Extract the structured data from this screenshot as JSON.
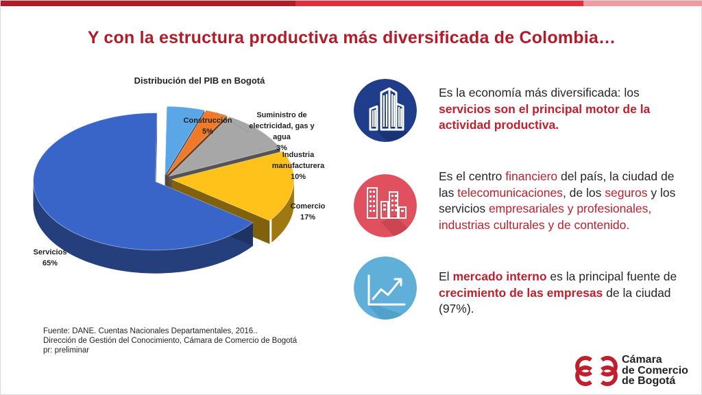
{
  "slide": {
    "title": "Y con la estructura productiva más diversificada de Colombia…",
    "accent_colors": [
      "#b31b28",
      "#e52d3c",
      "#f29aa2"
    ]
  },
  "chart_data": {
    "type": "pie",
    "title": "Distribución del PIB en Bogotá",
    "slices": [
      {
        "name": "Servicios",
        "label": "Servicios",
        "pct_label": "65%",
        "value": 65,
        "color": "#3a65c8"
      },
      {
        "name": "Construcción",
        "label": "Construcción",
        "pct_label": "5%",
        "value": 5,
        "color": "#5aa6e6"
      },
      {
        "name": "Suministro de electricidad, gas y agua",
        "label": [
          "Suministro de",
          "electricidad, gas y",
          "agua"
        ],
        "pct_label": "3%",
        "value": 3,
        "color": "#ef7a2a"
      },
      {
        "name": "Industria manufacturera",
        "label": [
          "Industria",
          "manufacturera"
        ],
        "pct_label": "10%",
        "value": 10,
        "color": "#a7a7a7"
      },
      {
        "name": "Comercio",
        "label": "Comercio",
        "pct_label": "17%",
        "value": 17,
        "color": "#ffc21a"
      }
    ],
    "legend": "none"
  },
  "source": {
    "line1": "Fuente: DANE. Cuentas Nacionales Departamentales, 2016..",
    "line2": "Dirección de Gestión del Conocimiento, Cámara de Comercio de Bogotá",
    "line3": "pr: preliminar"
  },
  "items": [
    {
      "icon": "buildings-icon",
      "color": "#1f3d8a",
      "segments": [
        {
          "t": "Es la economía más diversificada: los ",
          "s": "n"
        },
        {
          "t": "servicios son el principal motor de la actividad productiva.",
          "s": "hlb"
        }
      ]
    },
    {
      "icon": "city-skyline-icon",
      "color": "#e0505e",
      "segments": [
        {
          "t": "Es el centro ",
          "s": "n"
        },
        {
          "t": "financiero",
          "s": "hl"
        },
        {
          "t": " del país, la ciudad de las ",
          "s": "n"
        },
        {
          "t": "telecomunicaciones",
          "s": "hl"
        },
        {
          "t": ", de los ",
          "s": "n"
        },
        {
          "t": "seguros",
          "s": "hl"
        },
        {
          "t": " y los servicios ",
          "s": "n"
        },
        {
          "t": "empresariales y profesionales, industrias culturales y de contenido.",
          "s": "hl"
        }
      ]
    },
    {
      "icon": "growth-chart-icon",
      "color": "#5fafd8",
      "segments": [
        {
          "t": "El ",
          "s": "n"
        },
        {
          "t": "mercado interno",
          "s": "hlb"
        },
        {
          "t": " es la principal fuente de ",
          "s": "n"
        },
        {
          "t": "crecimiento de las empresas",
          "s": "hlb"
        },
        {
          "t": " de la ciudad (97%).",
          "s": "n"
        }
      ]
    }
  ],
  "logo": {
    "line1": "Cámara",
    "line2": "de Comercio",
    "line3": "de Bogotá",
    "color": "#c0202d"
  }
}
